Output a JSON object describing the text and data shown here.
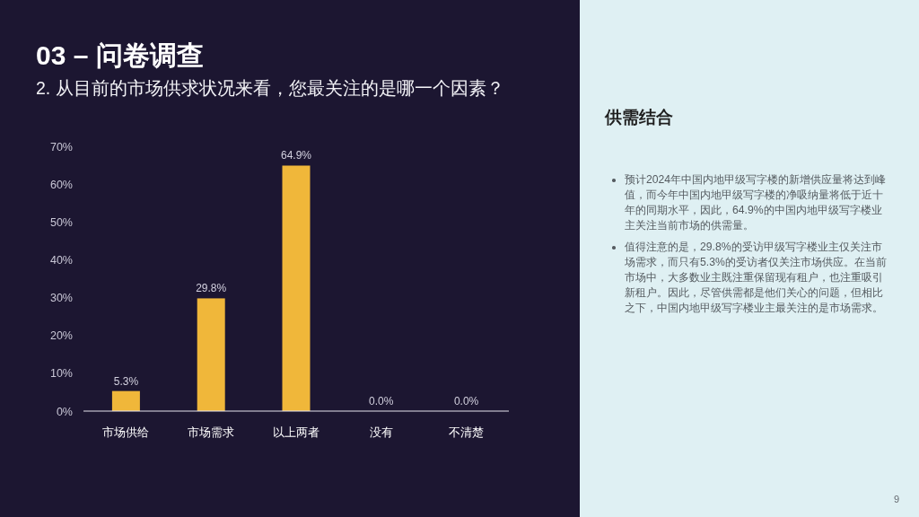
{
  "chart_data": [
    {
      "type": "bar",
      "title": "03 – 问卷调查",
      "subtitle": "2. 从目前的市场供求状况来看，您最关注的是哪一个因素？",
      "categories": [
        "市场供给",
        "市场需求",
        "以上两者",
        "没有",
        "不清楚"
      ],
      "values": [
        5.3,
        29.8,
        64.9,
        0,
        0
      ],
      "value_labels": [
        "5.3%",
        "29.8%",
        "64.9%",
        "0.0%",
        "0.0%"
      ],
      "color": "#f0b73a",
      "ylim": [
        0,
        70
      ],
      "yticks": [
        {
          "value": 0,
          "label": "0%"
        },
        {
          "value": 10,
          "label": "10%"
        },
        {
          "value": 20,
          "label": "20%"
        },
        {
          "value": 30,
          "label": "30%"
        },
        {
          "value": 40,
          "label": "40%"
        },
        {
          "value": 50,
          "label": "50%"
        },
        {
          "value": 60,
          "label": "60%"
        },
        {
          "value": 70,
          "label": "70%"
        }
      ]
    },
    {
      "type": "other",
      "title": "供需结合",
      "annotations": [
        "预计2024年中国内地甲级写字楼的新增供应量将达到峰值，而今年中国内地甲级写字楼的净吸纳量将低于近十年的同期水平，因此，64.9%的中国内地甲级写字楼业主关注当前市场的供需量。",
        "值得注意的是，29.8%的受访甲级写字楼业主仅关注市场需求，而只有5.3%的受访者仅关注市场供应。在当前市场中，大多数业主既注重保留现有租户，也注重吸引新租户。因此，尽管供需都是他们关心的问题，但相比之下，中国内地甲级写字楼业主最关注的是市场需求。",
        "9"
      ]
    }
  ]
}
